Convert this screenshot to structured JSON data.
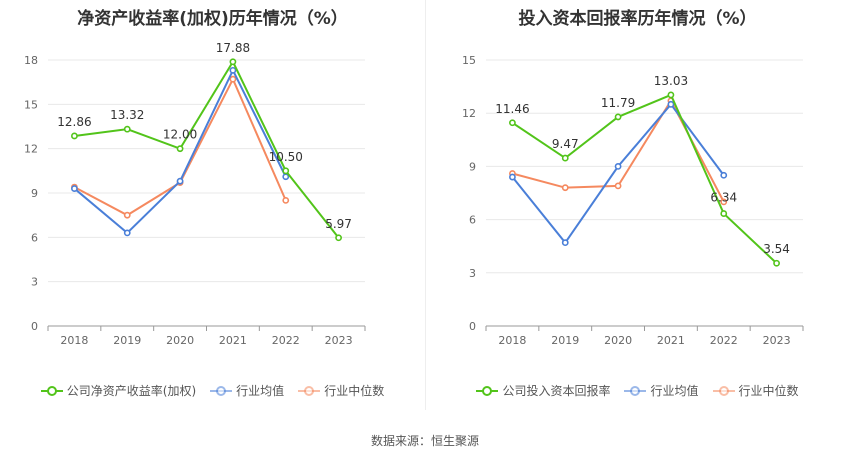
{
  "source_label": "数据来源：恒生聚源",
  "colors": {
    "company": "#52c41a",
    "avg": "#4a7fd8",
    "median": "#f5895f",
    "grid": "#e8e8e8",
    "axis": "#999999",
    "text": "#666666"
  },
  "chart_data": [
    {
      "type": "line",
      "title": "净资产收益率(加权)历年情况（%）",
      "xlabel": "",
      "ylabel": "",
      "categories": [
        "2018",
        "2019",
        "2020",
        "2021",
        "2022",
        "2023"
      ],
      "ylim": [
        0,
        18
      ],
      "yticks": [
        0,
        3,
        6,
        9,
        12,
        15,
        18
      ],
      "grid": true,
      "legend_position": "bottom",
      "series": [
        {
          "name": "公司净资产收益率(加权)",
          "key": "company",
          "values": [
            12.86,
            13.32,
            12.0,
            17.88,
            10.5,
            5.97
          ],
          "labels": [
            "12.86",
            "13.32",
            "12.00",
            "17.88",
            "10.50",
            "5.97"
          ]
        },
        {
          "name": "行业均值",
          "key": "avg",
          "values": [
            9.3,
            6.3,
            9.8,
            17.3,
            10.1,
            null
          ]
        },
        {
          "name": "行业中位数",
          "key": "median",
          "values": [
            9.4,
            7.5,
            9.7,
            16.7,
            8.5,
            null
          ]
        }
      ]
    },
    {
      "type": "line",
      "title": "投入资本回报率历年情况（%）",
      "xlabel": "",
      "ylabel": "",
      "categories": [
        "2018",
        "2019",
        "2020",
        "2021",
        "2022",
        "2023"
      ],
      "ylim": [
        0,
        15
      ],
      "yticks": [
        0,
        3,
        6,
        9,
        12,
        15
      ],
      "grid": true,
      "legend_position": "bottom",
      "series": [
        {
          "name": "公司投入资本回报率",
          "key": "company",
          "values": [
            11.46,
            9.47,
            11.79,
            13.03,
            6.34,
            3.54
          ],
          "labels": [
            "11.46",
            "9.47",
            "11.79",
            "13.03",
            "6.34",
            "3.54"
          ]
        },
        {
          "name": "行业均值",
          "key": "avg",
          "values": [
            8.4,
            4.7,
            9.0,
            12.5,
            8.5,
            null
          ]
        },
        {
          "name": "行业中位数",
          "key": "median",
          "values": [
            8.6,
            7.8,
            7.9,
            12.7,
            7.0,
            null
          ]
        }
      ]
    }
  ]
}
